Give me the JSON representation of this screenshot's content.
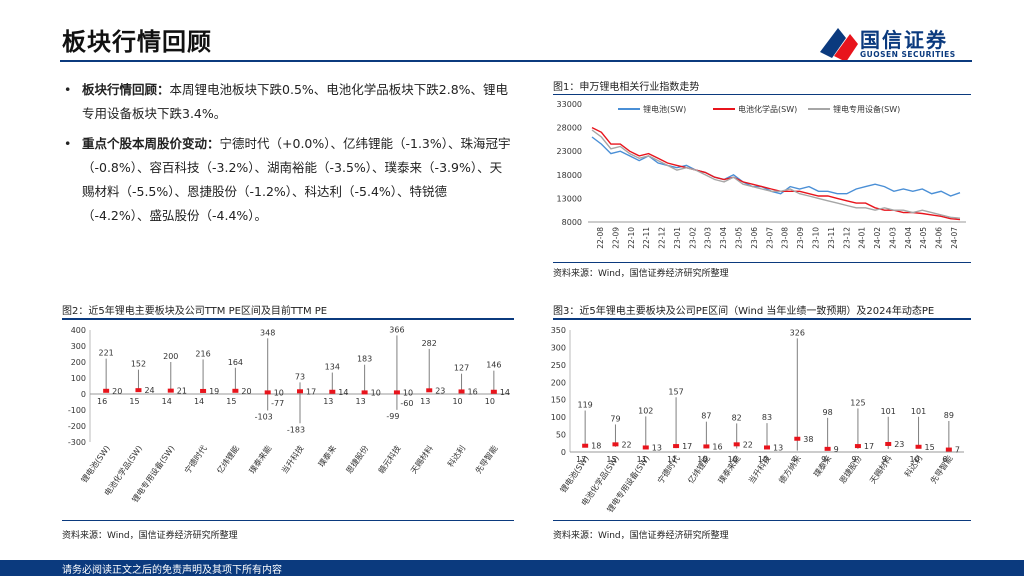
{
  "header": {
    "title": "板块行情回顾",
    "logo_cn": "国信证券",
    "logo_en": "GUOSEN SECURITIES"
  },
  "bullets": [
    {
      "head": "板块行情回顾：",
      "body": "本周锂电池板块下跌0.5%、电池化学品板块下跌2.8%、锂电专用设备板块下跌3.4%。"
    },
    {
      "head": "重点个股本周股价变动：",
      "body": "宁德时代（+0.0%）、亿纬锂能（-1.3%）、珠海冠宇（-0.8%）、容百科技（-3.2%）、湖南裕能（-3.5%）、璞泰来（-3.9%）、天赐材料（-5.5%）、恩捷股份（-1.2%）、科达利（-5.4%）、特锐德（-4.2%）、盛弘股份（-4.4%）。"
    }
  ],
  "figures": {
    "fig1": {
      "title": "图1：申万锂电相关行业指数走势",
      "source": "资料来源：Wind，国信证券经济研究所整理"
    },
    "fig2": {
      "title": "图2：近5年锂电主要板块及公司TTM PE区间及目前TTM PE",
      "source": "资料来源：Wind，国信证券经济研究所整理"
    },
    "fig3": {
      "title": "图3：近5年锂电主要板块及公司PE区间（Wind 当年业绩一致预期）及2024年动态PE",
      "source": "资料来源：Wind，国信证券经济研究所整理"
    }
  },
  "footer": {
    "text": "请务必阅读正文之后的免责声明及其项下所有内容"
  },
  "colors": {
    "brand": "#0b3a7e",
    "red": "#e8141c",
    "blue": "#4a8fd6",
    "gray": "#a6a6a6",
    "bar": "#595959"
  },
  "chart_data": [
    {
      "type": "line",
      "ylim": [
        8000,
        33000
      ],
      "yticks": [
        8000,
        13000,
        18000,
        23000,
        28000,
        33000
      ],
      "x_ticks": [
        "22-08",
        "22-09",
        "22-10",
        "22-11",
        "22-12",
        "23-01",
        "23-02",
        "23-03",
        "23-04",
        "23-05",
        "23-06",
        "23-07",
        "23-08",
        "23-09",
        "23-10",
        "23-11",
        "23-12",
        "24-01",
        "24-02",
        "24-03",
        "24-04",
        "24-05",
        "24-06",
        "24-07"
      ],
      "series": [
        {
          "name": "锂电池(SW)",
          "color": "#4a8fd6",
          "values": [
            26000,
            24500,
            22500,
            23000,
            22000,
            21000,
            22000,
            20500,
            20000,
            19500,
            20000,
            19000,
            18500,
            17500,
            17000,
            18000,
            16500,
            15500,
            15500,
            14500,
            14000,
            15500,
            15000,
            15500,
            14500,
            14500,
            14000,
            14000,
            15000,
            15500,
            16000,
            15500,
            14500,
            15000,
            14500,
            15000,
            14000,
            14500,
            13500,
            14200
          ]
        },
        {
          "name": "电池化学品(SW)",
          "color": "#e8141c",
          "values": [
            28000,
            27000,
            24500,
            24500,
            23000,
            22000,
            22500,
            21500,
            20500,
            20000,
            19500,
            19000,
            18500,
            17500,
            17000,
            17500,
            16500,
            16000,
            15500,
            15000,
            14500,
            14500,
            14500,
            14000,
            13500,
            13500,
            13000,
            12500,
            12000,
            12000,
            11000,
            10500,
            10500,
            10000,
            10000,
            9800,
            9500,
            9200,
            8700,
            8500
          ]
        },
        {
          "name": "锂电专用设备(SW)",
          "color": "#a6a6a6",
          "values": [
            27500,
            26000,
            23500,
            24000,
            22500,
            21500,
            22000,
            21000,
            20000,
            19000,
            19500,
            19000,
            18000,
            17000,
            16500,
            17500,
            16000,
            15500,
            15000,
            14500,
            14500,
            15000,
            14000,
            13500,
            13000,
            12500,
            12000,
            11500,
            11000,
            11000,
            10500,
            11000,
            10500,
            10500,
            10000,
            10500,
            10000,
            9500,
            9000,
            8800
          ]
        }
      ]
    },
    {
      "type": "bar",
      "ylim": [
        -300,
        400
      ],
      "yticks": [
        -300,
        -200,
        -100,
        0,
        100,
        200,
        300,
        400
      ],
      "categories": [
        "锂电池(SW)",
        "电池化学品(SW)",
        "锂电专用设备(SW)",
        "宁德时代",
        "亿纬锂能",
        "璞泰来能",
        "当升科技",
        "璞泰来",
        "恩捷股份",
        "赣元科技",
        "天赐材料",
        "科达利",
        "先导智能"
      ],
      "max": [
        221,
        152,
        200,
        216,
        164,
        348,
        73,
        134,
        183,
        366,
        282,
        127,
        146
      ],
      "current": [
        20,
        24,
        21,
        19,
        20,
        10,
        17,
        14,
        10,
        10,
        23,
        16,
        14
      ],
      "min": [
        16,
        15,
        14,
        14,
        15,
        -103,
        -183,
        13,
        13,
        -99,
        13,
        10,
        10
      ],
      "min_labels": [
        "16",
        "15",
        "14",
        "14",
        "15",
        "-103",
        "-183",
        "13",
        "13",
        "-99",
        "13",
        "10",
        "10"
      ],
      "extra_labels": [
        "",
        "",
        "",
        "",
        "",
        "-77",
        "",
        "",
        "",
        "-60",
        "",
        "",
        ""
      ]
    },
    {
      "type": "bar",
      "ylim": [
        0,
        350
      ],
      "yticks": [
        0,
        50,
        100,
        150,
        200,
        250,
        300,
        350
      ],
      "categories": [
        "锂电池(SW)",
        "电池化学品(SW)",
        "锂电专用设备(SW)",
        "宁德时代",
        "亿纬锂能",
        "璞泰来能",
        "当升科技",
        "德方纳米",
        "璞泰来",
        "恩捷股份",
        "天赐材料",
        "科达利",
        "先导智能"
      ],
      "max": [
        119,
        79,
        102,
        157,
        87,
        82,
        83,
        326,
        98,
        125,
        101,
        101,
        89
      ],
      "current": [
        18,
        22,
        13,
        17,
        16,
        22,
        13,
        38,
        9,
        17,
        23,
        15,
        7
      ],
      "min": [
        17,
        15,
        11,
        11,
        10,
        10,
        10,
        4,
        9,
        9,
        9,
        10,
        6
      ]
    }
  ]
}
